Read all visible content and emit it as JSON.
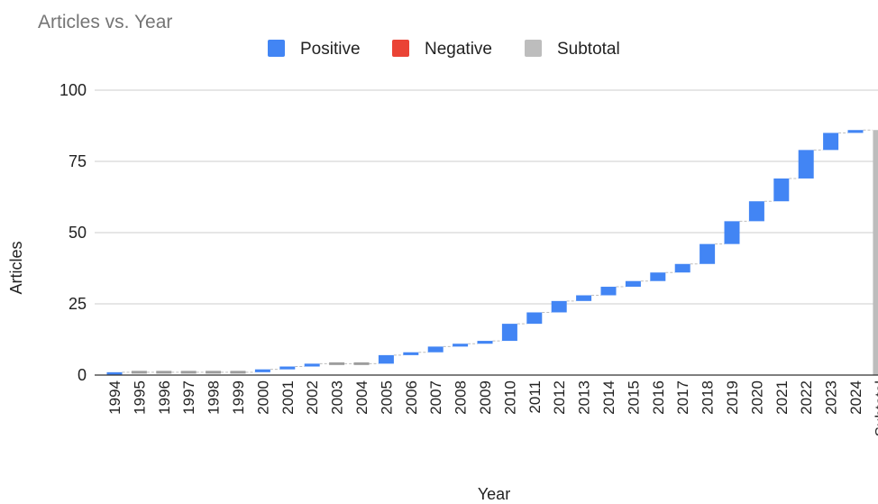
{
  "chart_data": {
    "type": "bar",
    "subtype": "waterfall",
    "title": "Articles vs. Year",
    "xlabel": "Year",
    "ylabel": "Articles",
    "ylim": [
      0,
      100
    ],
    "yticks": [
      0,
      25,
      50,
      75,
      100
    ],
    "grid": true,
    "legend_position": "top",
    "legend": [
      {
        "name": "Positive",
        "color": "#4285f4"
      },
      {
        "name": "Negative",
        "color": "#ea4335"
      },
      {
        "name": "Subtotal",
        "color": "#bdbdbd"
      }
    ],
    "categories": [
      "1994",
      "1995",
      "1996",
      "1997",
      "1998",
      "1999",
      "2000",
      "2001",
      "2002",
      "2003",
      "2004",
      "2005",
      "2006",
      "2007",
      "2008",
      "2009",
      "2010",
      "2011",
      "2012",
      "2013",
      "2014",
      "2015",
      "2016",
      "2017",
      "2018",
      "2019",
      "2020",
      "2021",
      "2022",
      "2023",
      "2024",
      "Subtotal"
    ],
    "increments": [
      1,
      0,
      0,
      0,
      0,
      0,
      1,
      1,
      1,
      0,
      0,
      3,
      1,
      2,
      1,
      1,
      6,
      4,
      4,
      2,
      3,
      2,
      3,
      3,
      7,
      8,
      7,
      8,
      10,
      6,
      1
    ],
    "subtotal": 86
  }
}
